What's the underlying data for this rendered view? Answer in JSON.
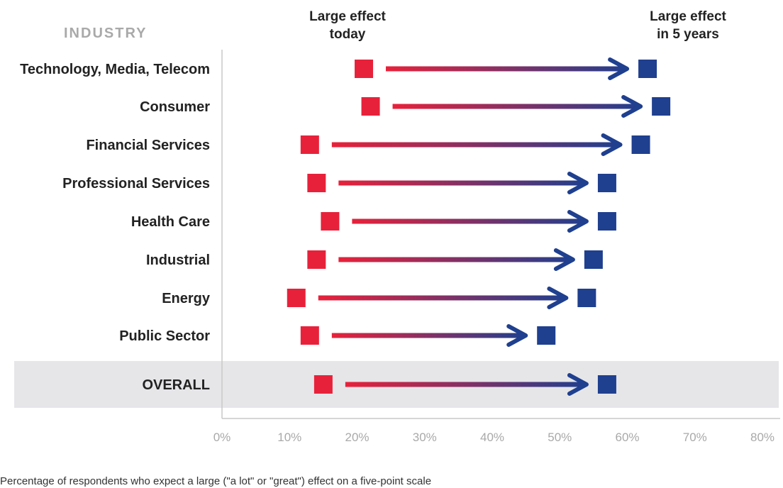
{
  "chart_data": {
    "type": "dumbbell",
    "category_header": "INDUSTRY",
    "series": [
      {
        "name": "Large effect today",
        "color": "#e8213a"
      },
      {
        "name": "Large effect in 5 years",
        "color": "#1f3f8f"
      }
    ],
    "legend": {
      "today_line1": "Large effect",
      "today_line2": "today",
      "future_line1": "Large effect",
      "future_line2": "in 5 years"
    },
    "categories": [
      "Technology, Media, Telecom",
      "Consumer",
      "Financial Services",
      "Professional Services",
      "Health Care",
      "Industrial",
      "Energy",
      "Public Sector",
      "OVERALL"
    ],
    "today": [
      21,
      22,
      13,
      14,
      16,
      14,
      11,
      13,
      15
    ],
    "in_5_years": [
      63,
      65,
      62,
      57,
      57,
      55,
      54,
      48,
      57
    ],
    "highlight_row": "OVERALL",
    "highlight_color": "#e6e6e9",
    "xlim": [
      0,
      80
    ],
    "x_ticks": [
      "0%",
      "10%",
      "20%",
      "30%",
      "40%",
      "50%",
      "60%",
      "70%",
      "80%"
    ],
    "footnote": "Percentage of respondents who expect a large (\"a lot\" or \"great\") effect on a five-point scale"
  }
}
